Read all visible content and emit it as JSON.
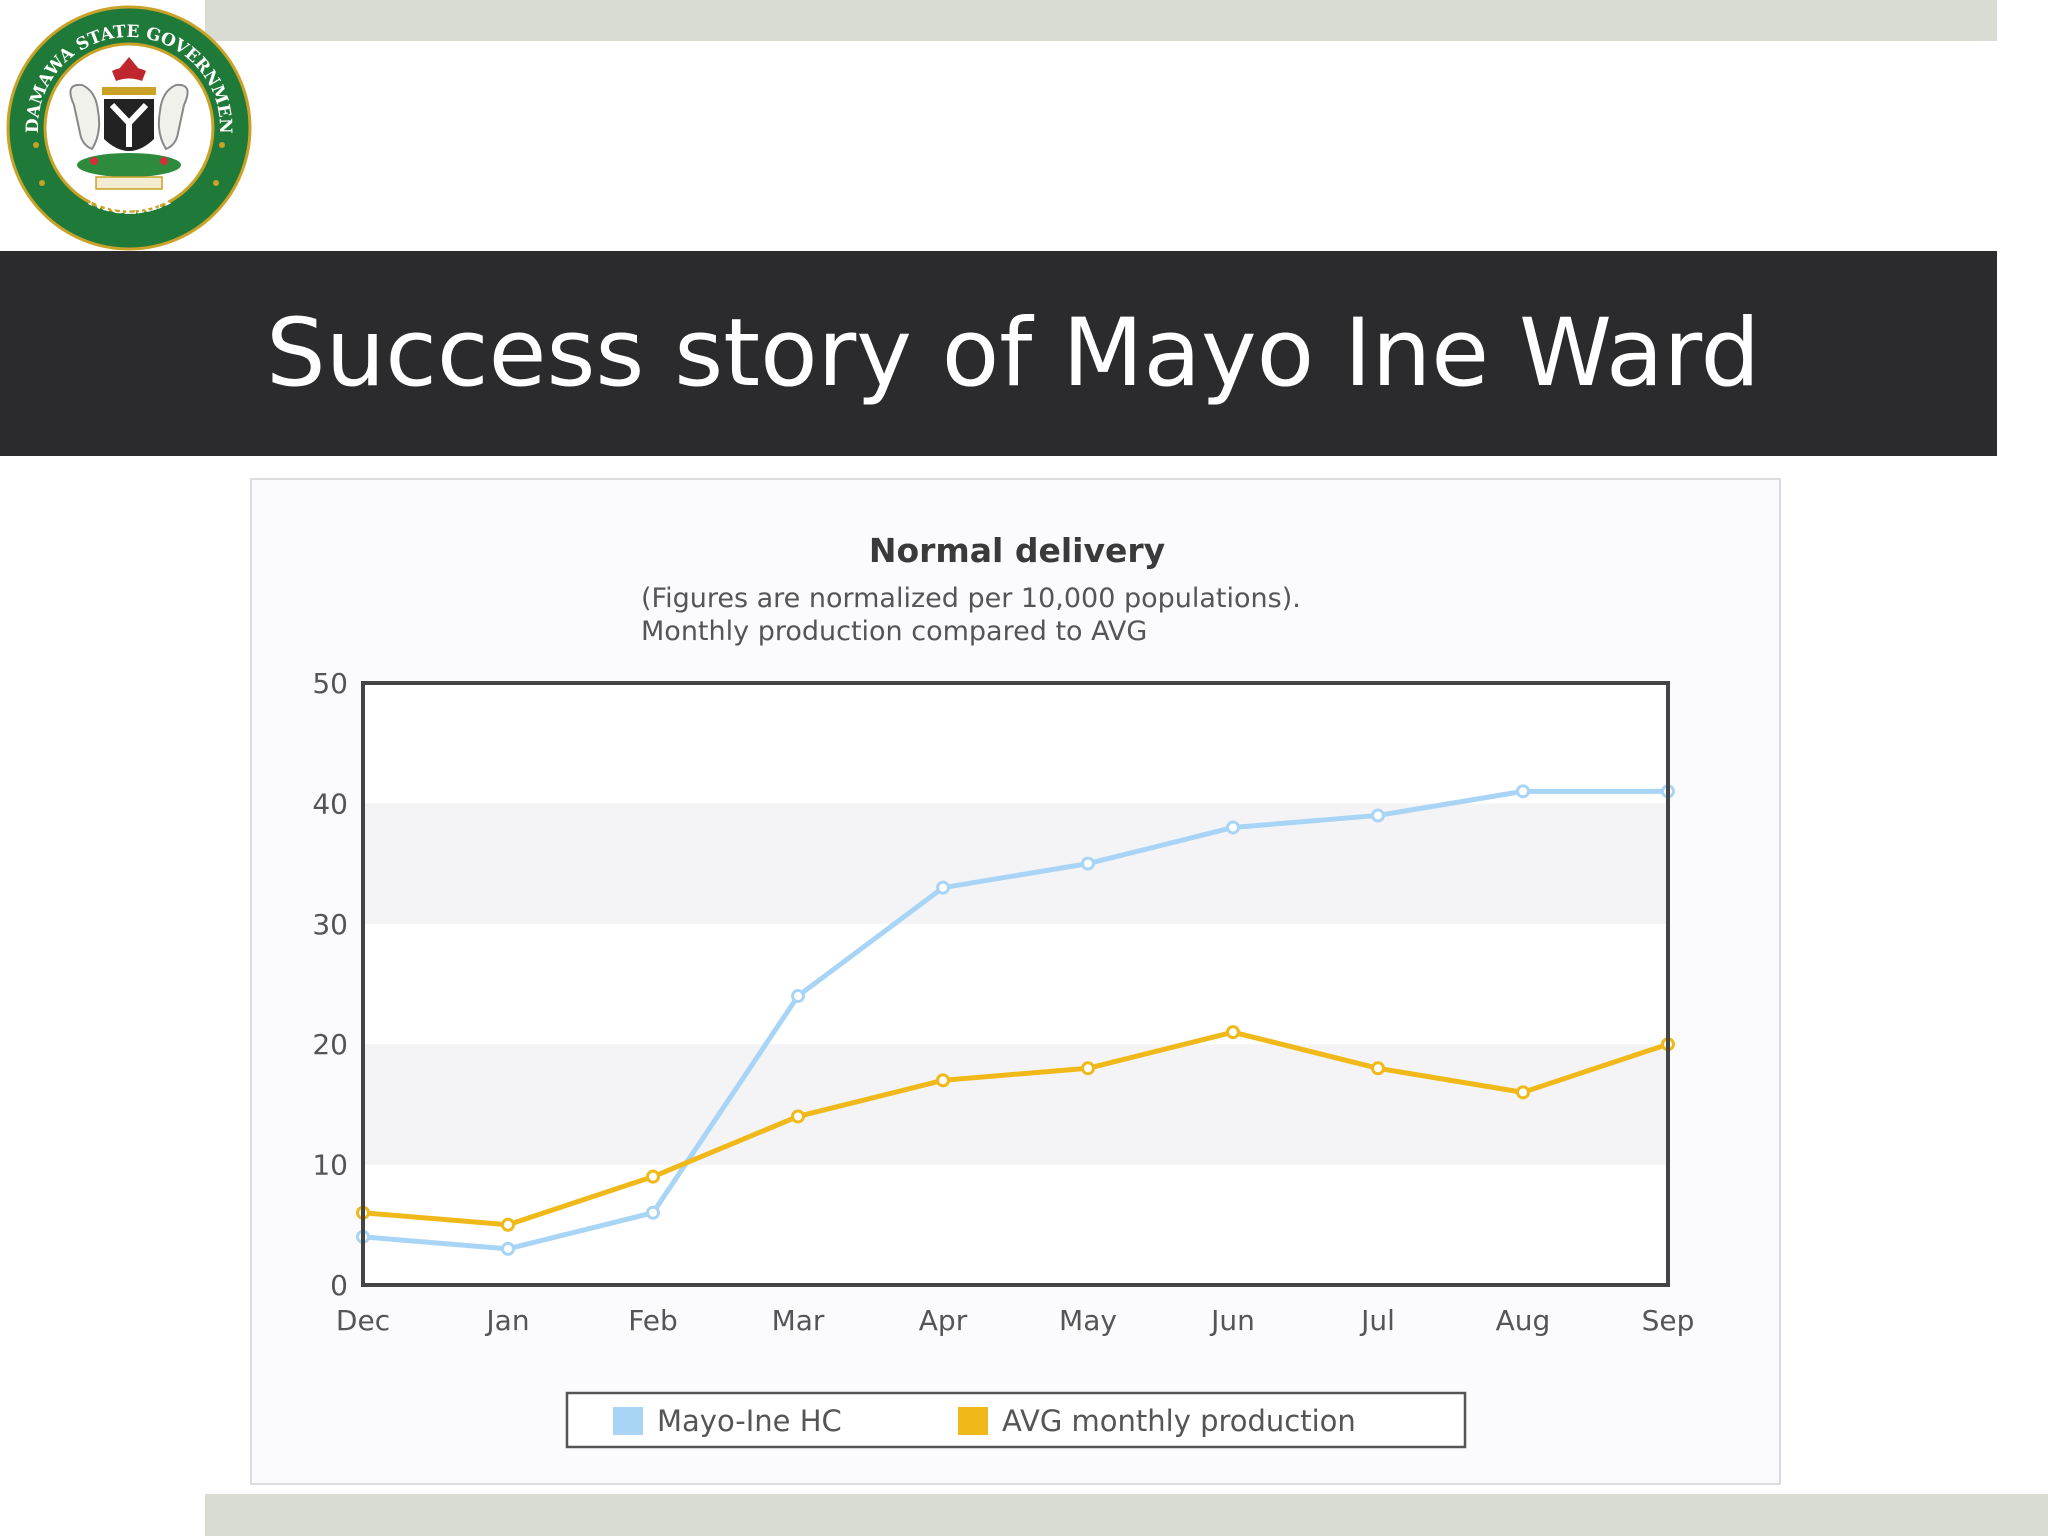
{
  "slide": {
    "title": "Success story of Mayo Ine Ward"
  },
  "logo": {
    "ring_text_top": "ADAMAWA STATE GOVERNMENT",
    "ring_text_bottom": "NIGERIA"
  },
  "colors": {
    "title_bar": "#2b2b2d",
    "band": "#d8dcd2",
    "series_hc": "#a8d4f5",
    "series_avg": "#f0b819",
    "seal_green": "#1f7a3a"
  },
  "chart_data": {
    "type": "line",
    "title": "Normal delivery",
    "subtitle": [
      "(Figures are normalized per 10,000 populations).",
      "Monthly production compared to AVG"
    ],
    "categories": [
      "Dec",
      "Jan",
      "Feb",
      "Mar",
      "Apr",
      "May",
      "Jun",
      "Jul",
      "Aug",
      "Sep"
    ],
    "ylim": [
      0,
      50
    ],
    "yticks": [
      0,
      10,
      20,
      30,
      40,
      50
    ],
    "grid": "alternating horizontal bands",
    "legend_position": "bottom-center",
    "series": [
      {
        "name": "Mayo-Ine HC",
        "color": "#a8d4f5",
        "values": [
          4,
          3,
          6,
          24,
          33,
          35,
          38,
          39,
          41,
          41
        ]
      },
      {
        "name": "AVG monthly production",
        "color": "#f0b819",
        "values": [
          6,
          5,
          9,
          14,
          17,
          18,
          21,
          18,
          16,
          20
        ]
      }
    ]
  }
}
